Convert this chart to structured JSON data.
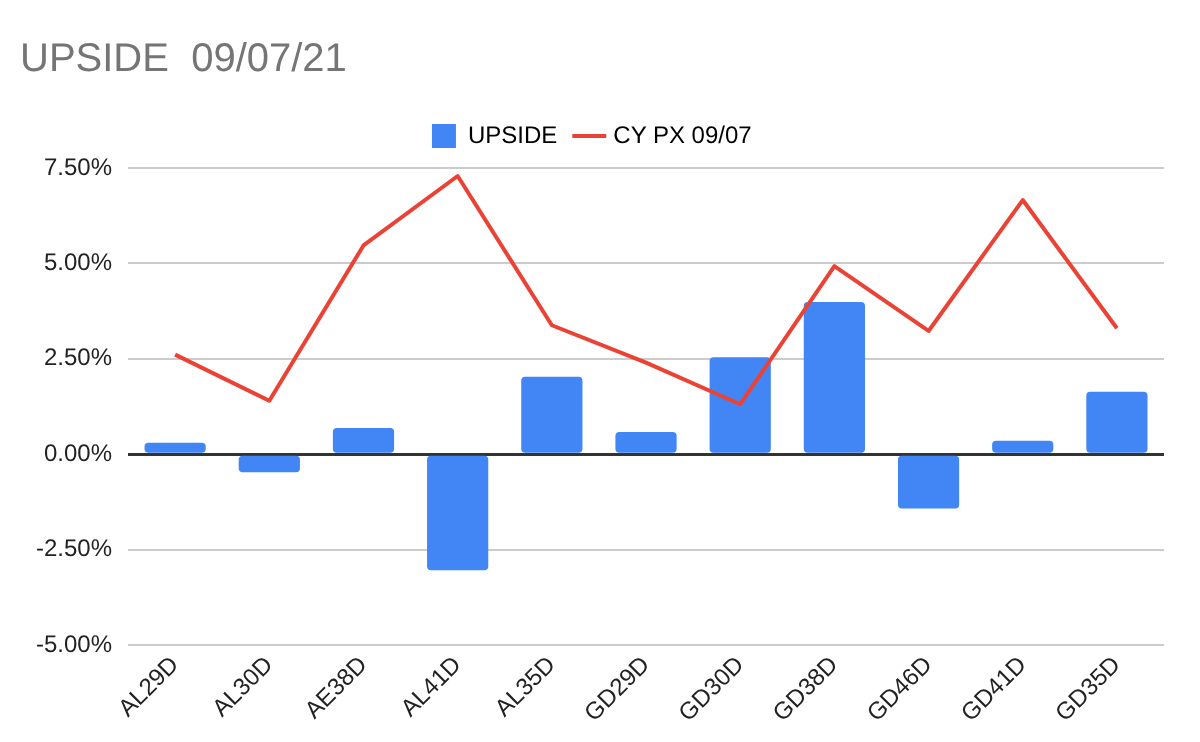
{
  "chart_data": {
    "type": "bar",
    "title": "UPSIDE  09/07/21",
    "categories": [
      "AL29D",
      "AL30D",
      "AE38D",
      "AL41D",
      "AL35D",
      "GD29D",
      "GD30D",
      "GD38D",
      "GD46D",
      "GD41D",
      "GD35D"
    ],
    "series": [
      {
        "name": "UPSIDE",
        "color": "#4285f4",
        "values": [
          0.3,
          -0.47,
          0.69,
          -3.04,
          2.03,
          0.58,
          2.54,
          3.99,
          -1.42,
          0.35,
          1.64
        ]
      },
      {
        "name": "CY PX 09/07",
        "type": "line",
        "color": "#ea4335",
        "values": [
          2.61,
          1.4,
          5.47,
          7.29,
          3.38,
          2.4,
          1.31,
          4.93,
          3.23,
          6.66,
          3.3
        ]
      }
    ],
    "ylim": [
      -5,
      7.5
    ],
    "yticks": [
      {
        "value": -5,
        "label": "-5.00%"
      },
      {
        "value": -2.5,
        "label": "-2.50%"
      },
      {
        "value": 0,
        "label": "0.00%"
      },
      {
        "value": 2.5,
        "label": "2.50%"
      },
      {
        "value": 5,
        "label": "5.00%"
      },
      {
        "value": 7.5,
        "label": "7.50%"
      }
    ],
    "grid": "y",
    "legend": "top",
    "marker": "none"
  }
}
